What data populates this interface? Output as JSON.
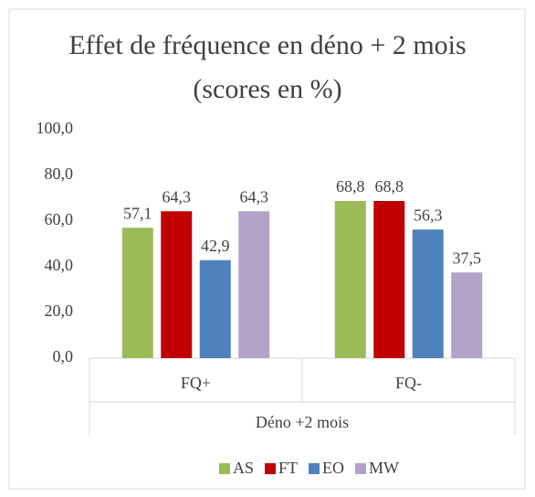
{
  "chart_data": {
    "type": "bar",
    "title": "Effet de fréquence en déno + 2 mois (scores en %)",
    "categories": [
      "FQ+",
      "FQ-"
    ],
    "group_label": "Déno +2 mois",
    "series": [
      {
        "name": "AS",
        "color": "#9bbb59",
        "values": [
          57.1,
          68.8
        ],
        "value_labels": [
          "57,1",
          "68,8"
        ]
      },
      {
        "name": "FT",
        "color": "#c00000",
        "values": [
          64.3,
          68.8
        ],
        "value_labels": [
          "64,3",
          "68,8"
        ]
      },
      {
        "name": "EO",
        "color": "#4f81bd",
        "values": [
          42.9,
          56.3
        ],
        "value_labels": [
          "42,9",
          "56,3"
        ]
      },
      {
        "name": "MW",
        "color": "#b3a2c7",
        "values": [
          64.3,
          37.5
        ],
        "value_labels": [
          "64,3",
          "37,5"
        ]
      }
    ],
    "ylim": [
      0,
      100
    ],
    "yticks": [
      {
        "value": 0,
        "label": "0,0"
      },
      {
        "value": 20,
        "label": "20,0"
      },
      {
        "value": 40,
        "label": "40,0"
      },
      {
        "value": 60,
        "label": "60,0"
      },
      {
        "value": 80,
        "label": "80,0"
      },
      {
        "value": 100,
        "label": "100,0"
      }
    ],
    "grid": false,
    "legend": "bottom"
  }
}
